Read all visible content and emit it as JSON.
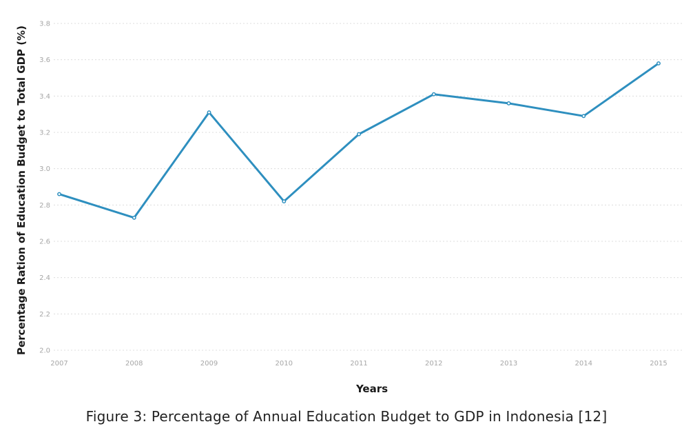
{
  "colors": {
    "line": "#2e8fbf",
    "grid": "#dcdcdc",
    "tick_text": "#a6a6a6",
    "axis_title_text": "#1a1a1a",
    "caption_text": "#222222",
    "background": "#ffffff"
  },
  "caption": "Figure 3: Percentage of Annual Education Budget to GDP in Indonesia [12]",
  "chart_data": {
    "type": "line",
    "title": "",
    "xlabel": "Years",
    "ylabel": "Percentage Ration of Education Budget to Total GDP (%)",
    "categories": [
      "2007",
      "2008",
      "2009",
      "2010",
      "2011",
      "2012",
      "2013",
      "2014",
      "2015"
    ],
    "series": [
      {
        "values": [
          2.86,
          2.73,
          3.31,
          2.82,
          3.19,
          3.41,
          3.36,
          3.29,
          3.58
        ]
      }
    ],
    "ylim": [
      2.0,
      3.8
    ],
    "yticks": [
      "2.0",
      "2.2",
      "2.4",
      "2.6",
      "2.8",
      "3.0",
      "3.2",
      "3.4",
      "3.6",
      "3.8"
    ],
    "grid": true,
    "legend": "none"
  }
}
